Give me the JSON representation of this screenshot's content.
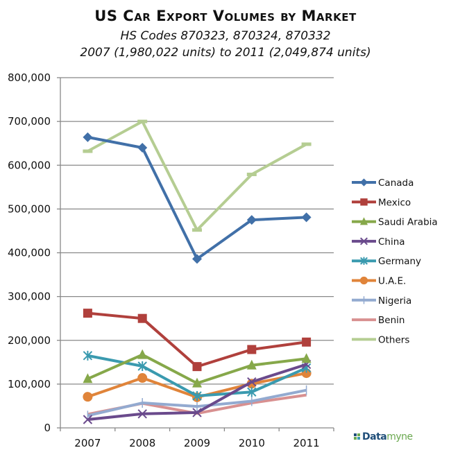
{
  "chart_data": {
    "type": "line",
    "title": "US Car Export Volumes by Market",
    "subtitle_lines": [
      "HS Codes  870323, 870324, 870332",
      "2007 (1,980,022 units) to 2011 (2,049,874 units)"
    ],
    "xlabel": "",
    "ylabel": "",
    "categories": [
      "2007",
      "2008",
      "2009",
      "2010",
      "2011"
    ],
    "ylim": [
      0,
      800000
    ],
    "yticks": [
      0,
      100000,
      200000,
      300000,
      400000,
      500000,
      600000,
      700000,
      800000
    ],
    "ytick_labels": [
      "0",
      "100,000",
      "200,000",
      "300,000",
      "400,000",
      "500,000",
      "600,000",
      "700,000",
      "800,000"
    ],
    "grid": true,
    "legend_position": "right",
    "series": [
      {
        "name": "Canada",
        "color": "#4170a8",
        "marker": "diamond",
        "values": [
          664000,
          640000,
          386000,
          475000,
          481000
        ]
      },
      {
        "name": "Mexico",
        "color": "#b0403c",
        "marker": "square",
        "values": [
          262000,
          250000,
          140000,
          179000,
          196000
        ]
      },
      {
        "name": "Saudi Arabia",
        "color": "#86a84a",
        "marker": "triangle",
        "values": [
          112000,
          167000,
          102000,
          143000,
          158000
        ]
      },
      {
        "name": "China",
        "color": "#6a4a8c",
        "marker": "x",
        "values": [
          19000,
          32000,
          35000,
          105000,
          145000
        ]
      },
      {
        "name": "Germany",
        "color": "#3a9aaf",
        "marker": "star",
        "values": [
          165000,
          141000,
          73000,
          82000,
          137000
        ]
      },
      {
        "name": "U.A.E.",
        "color": "#e0843a",
        "marker": "circle",
        "values": [
          71000,
          114000,
          70000,
          101000,
          125000
        ]
      },
      {
        "name": "Nigeria",
        "color": "#93aad0",
        "marker": "plus",
        "values": [
          28000,
          57000,
          49000,
          61000,
          86000
        ]
      },
      {
        "name": "Benin",
        "color": "#d89090",
        "marker": "none",
        "values": [
          31000,
          56000,
          33000,
          57000,
          75000
        ]
      },
      {
        "name": "Others",
        "color": "#b5cd92",
        "marker": "dash",
        "values": [
          632000,
          700000,
          452000,
          579000,
          648000
        ]
      }
    ]
  },
  "branding": {
    "part1": "Data",
    "part2": "myne"
  }
}
